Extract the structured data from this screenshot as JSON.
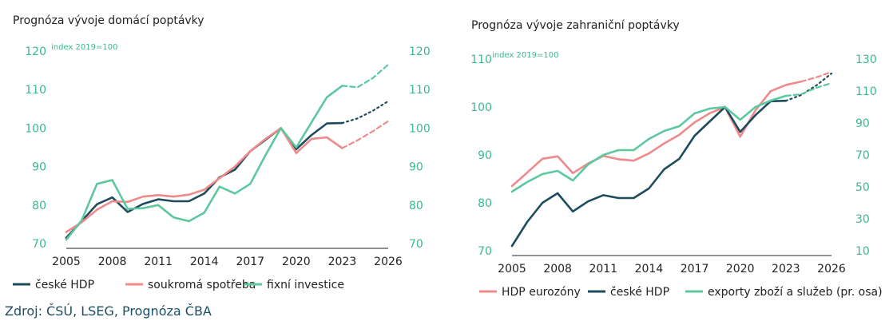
{
  "source": "Zdroj: ČSÚ, LSEG, Prognóza ČBA",
  "colors": {
    "navy": "#1e4c5e",
    "pink": "#ef8a8a",
    "green": "#5dc79d",
    "axis": "#3bb792"
  },
  "chart_data": [
    {
      "type": "line",
      "title": "Prognóza vývoje domácí poptávky",
      "note": "index 2019=100",
      "xlim": [
        2005,
        2026
      ],
      "xticks": [
        2005,
        2008,
        2011,
        2014,
        2017,
        2020,
        2023,
        2026
      ],
      "ylim": [
        70,
        120
      ],
      "yticks_left": [
        70,
        80,
        90,
        100,
        110,
        120
      ],
      "yticks_right": [
        70,
        80,
        90,
        100,
        110,
        120
      ],
      "grid": false,
      "legend_position": "bottom",
      "series": [
        {
          "name": "české HDP",
          "color": "navy",
          "x": [
            2005,
            2006,
            2007,
            2008,
            2009,
            2010,
            2011,
            2012,
            2013,
            2014,
            2015,
            2016,
            2017,
            2018,
            2019,
            2020,
            2021,
            2022,
            2023,
            2024,
            2025,
            2026
          ],
          "y": [
            71.5,
            75.8,
            80.2,
            82.0,
            78.2,
            80.3,
            81.5,
            81.0,
            81.0,
            83.0,
            87.2,
            89.2,
            94.0,
            97.0,
            100,
            94.5,
            98.2,
            101.2,
            101.3,
            102.5,
            104.5,
            107.0
          ],
          "forecast_from": 2023
        },
        {
          "name": "soukromá spotřeba",
          "color": "pink",
          "x": [
            2005,
            2006,
            2007,
            2008,
            2009,
            2010,
            2011,
            2012,
            2013,
            2014,
            2015,
            2016,
            2017,
            2018,
            2019,
            2020,
            2021,
            2022,
            2023,
            2024,
            2025,
            2026
          ],
          "y": [
            73.0,
            75.5,
            78.8,
            81.0,
            80.8,
            82.2,
            82.6,
            82.2,
            82.7,
            84.0,
            87.0,
            90.0,
            94.0,
            97.2,
            100,
            93.5,
            97.2,
            97.6,
            94.8,
            96.8,
            99.2,
            101.8
          ],
          "forecast_from": 2023
        },
        {
          "name": "fixní investice",
          "color": "green",
          "x": [
            2005,
            2006,
            2007,
            2008,
            2009,
            2010,
            2011,
            2012,
            2013,
            2014,
            2015,
            2016,
            2017,
            2018,
            2019,
            2020,
            2021,
            2022,
            2023,
            2024,
            2025,
            2026
          ],
          "y": [
            71.0,
            76.0,
            85.5,
            86.5,
            79.0,
            79.2,
            80.0,
            76.8,
            75.8,
            78.0,
            84.8,
            83.0,
            85.5,
            93.0,
            100,
            95.0,
            101.5,
            108.0,
            111.0,
            110.6,
            113.0,
            116.5
          ],
          "forecast_from": 2023
        }
      ]
    },
    {
      "type": "line",
      "title": "Prognóza vývoje zahraniční poptávky",
      "note": "index 2019=100",
      "xlim": [
        2005,
        2026
      ],
      "xticks": [
        2005,
        2008,
        2011,
        2014,
        2017,
        2020,
        2023,
        2026
      ],
      "ylim": [
        70,
        110
      ],
      "yticks_left": [
        70,
        80,
        90,
        100,
        110
      ],
      "ylim_right": [
        10,
        130
      ],
      "yticks_right": [
        10,
        30,
        50,
        70,
        90,
        110,
        130
      ],
      "grid": false,
      "legend_position": "bottom",
      "series": [
        {
          "name": "HDP eurozóny",
          "color": "pink",
          "axis": "left",
          "x": [
            2005,
            2006,
            2007,
            2008,
            2009,
            2010,
            2011,
            2012,
            2013,
            2014,
            2015,
            2016,
            2017,
            2018,
            2019,
            2020,
            2021,
            2022,
            2023,
            2024,
            2025,
            2026
          ],
          "y": [
            83.5,
            86.3,
            89.2,
            89.7,
            86.2,
            88.2,
            89.8,
            89.1,
            88.8,
            90.3,
            92.4,
            94.2,
            96.8,
            98.7,
            100,
            93.8,
            99.3,
            103.3,
            104.6,
            105.3,
            106.2,
            107.3
          ],
          "forecast_from": 2024
        },
        {
          "name": "české HDP",
          "color": "navy",
          "axis": "left",
          "x": [
            2005,
            2006,
            2007,
            2008,
            2009,
            2010,
            2011,
            2012,
            2013,
            2014,
            2015,
            2016,
            2017,
            2018,
            2019,
            2020,
            2021,
            2022,
            2023,
            2024,
            2025,
            2026
          ],
          "y": [
            71.0,
            76.0,
            80.0,
            82.0,
            78.2,
            80.3,
            81.6,
            81.0,
            81.0,
            83.0,
            87.0,
            89.2,
            94.0,
            97.0,
            100,
            94.8,
            98.3,
            101.2,
            101.3,
            102.5,
            104.5,
            107.0
          ],
          "forecast_from": 2023
        },
        {
          "name": "exporty zboží a služeb (pr. osa)",
          "color": "green",
          "axis": "right",
          "x": [
            2005,
            2006,
            2007,
            2008,
            2009,
            2010,
            2011,
            2012,
            2013,
            2014,
            2015,
            2016,
            2017,
            2018,
            2019,
            2020,
            2021,
            2022,
            2023,
            2024,
            2025,
            2026
          ],
          "y": [
            47,
            53,
            58,
            60,
            54,
            64,
            70,
            73,
            73,
            80,
            85,
            88,
            96,
            99,
            100,
            92,
            100,
            104,
            107,
            108,
            112,
            115
          ],
          "forecast_from": 2023
        }
      ]
    }
  ]
}
